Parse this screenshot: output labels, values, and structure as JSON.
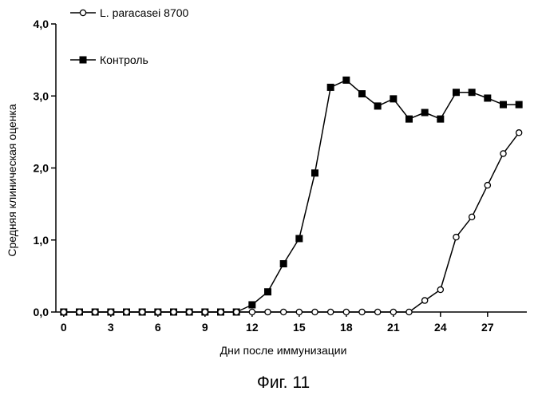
{
  "chart_data": {
    "type": "line",
    "xlabel": "Дни после иммунизации",
    "ylabel": "Средняя клиническая оценка",
    "xlim": [
      -0.5,
      29.5
    ],
    "ylim": [
      0,
      4
    ],
    "x_ticks": [
      0,
      3,
      6,
      9,
      12,
      15,
      18,
      21,
      24,
      27
    ],
    "y_ticks": [
      0,
      1,
      2,
      3,
      4
    ],
    "y_tick_labels": [
      "0,0",
      "1,0",
      "2,0",
      "3,0",
      "4,0"
    ],
    "grid": false,
    "legend_position": "top-left",
    "series": [
      {
        "name": "L. paracasei 8700",
        "marker": "circle-open",
        "color": "#000000",
        "x": [
          0,
          1,
          2,
          3,
          4,
          5,
          6,
          7,
          8,
          9,
          10,
          11,
          12,
          13,
          14,
          15,
          16,
          17,
          18,
          19,
          20,
          21,
          22,
          23,
          24,
          25,
          26,
          27,
          28,
          29
        ],
        "y": [
          0,
          0,
          0,
          0,
          0,
          0,
          0,
          0,
          0,
          0,
          0,
          0,
          0,
          0,
          0,
          0,
          0,
          0,
          0,
          0,
          0,
          0,
          0,
          0.16,
          0.31,
          1.04,
          1.32,
          1.76,
          2.2,
          2.49
        ]
      },
      {
        "name": "Контроль",
        "marker": "square-filled",
        "color": "#000000",
        "x": [
          0,
          1,
          2,
          3,
          4,
          5,
          6,
          7,
          8,
          9,
          10,
          11,
          12,
          13,
          14,
          15,
          16,
          17,
          18,
          19,
          20,
          21,
          22,
          23,
          24,
          25,
          26,
          27,
          28,
          29
        ],
        "y": [
          0,
          0,
          0,
          0,
          0,
          0,
          0,
          0,
          0,
          0,
          0,
          0,
          0.1,
          0.28,
          0.67,
          1.02,
          1.93,
          3.12,
          3.22,
          3.03,
          2.86,
          2.96,
          2.68,
          2.77,
          2.68,
          3.05,
          3.05,
          2.97,
          2.88,
          2.88
        ]
      }
    ]
  },
  "caption": "Фиг. 11"
}
